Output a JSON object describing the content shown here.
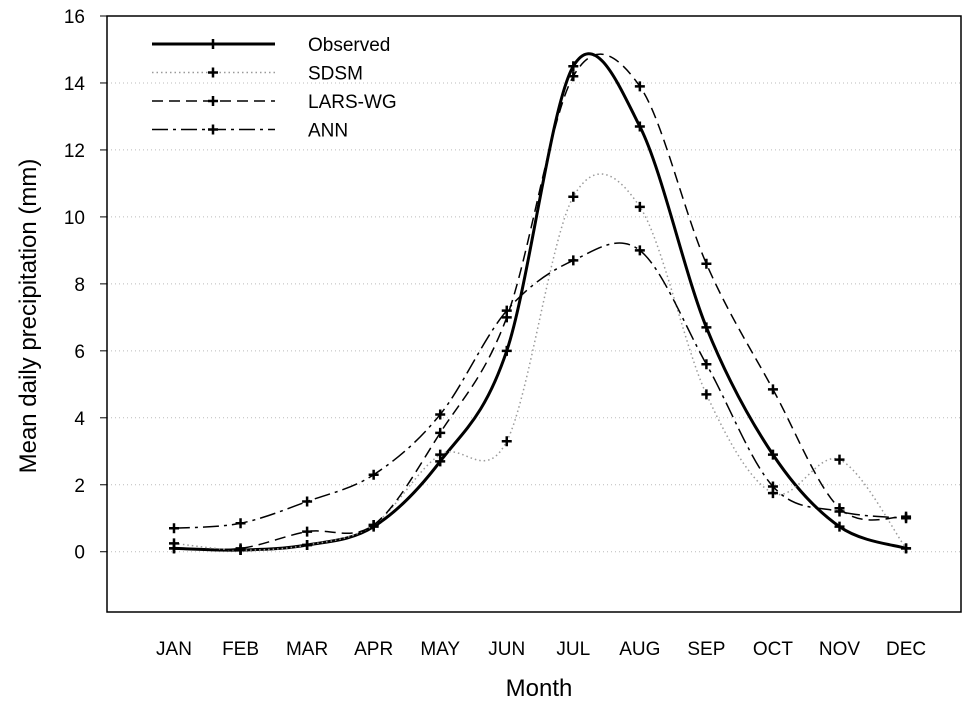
{
  "chart_data": {
    "type": "line",
    "x_label": "Month",
    "y_label": "Mean daily precipitation (mm)",
    "categories": [
      "JAN",
      "FEB",
      "MAR",
      "APR",
      "MAY",
      "JUN",
      "JUL",
      "AUG",
      "SEP",
      "OCT",
      "NOV",
      "DEC"
    ],
    "ylim": [
      -1.8,
      16
    ],
    "yticks": [
      0,
      2,
      4,
      6,
      8,
      10,
      12,
      14,
      16
    ],
    "grid": true,
    "legend": "upper-left",
    "series": [
      {
        "name": "Observed",
        "color": "#000000",
        "dash": "solid",
        "values": [
          0.1,
          0.05,
          0.2,
          0.75,
          2.7,
          6.0,
          14.5,
          12.7,
          6.7,
          2.9,
          0.75,
          0.1
        ]
      },
      {
        "name": "SDSM",
        "color": "#9a9a9a",
        "dash": "dotted",
        "values": [
          0.25,
          0.05,
          0.2,
          0.8,
          2.9,
          3.3,
          10.6,
          10.3,
          4.7,
          1.75,
          2.75,
          0.1
        ]
      },
      {
        "name": "LARS-WG",
        "color": "#000000",
        "dash": "dashed",
        "values": [
          0.1,
          0.1,
          0.6,
          0.8,
          3.55,
          7.0,
          14.2,
          13.9,
          8.6,
          4.85,
          1.3,
          1.05
        ]
      },
      {
        "name": "ANN",
        "color": "#000000",
        "dash": "dashdot",
        "values": [
          0.7,
          0.85,
          1.5,
          2.3,
          4.1,
          7.2,
          8.7,
          9.0,
          5.6,
          1.95,
          1.2,
          1.0
        ]
      }
    ]
  }
}
